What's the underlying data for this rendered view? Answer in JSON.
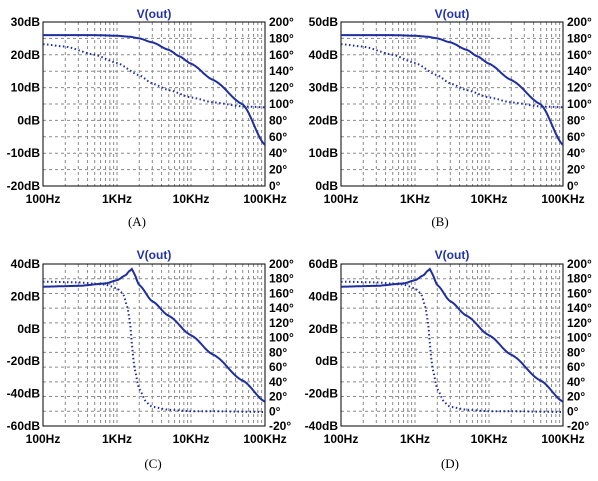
{
  "colors": {
    "trace": "#1f2fa0",
    "title": "#2233aa",
    "grid": "#8a8a8a",
    "axis": "#000000",
    "background": "#ffffff"
  },
  "chart_data": [
    {
      "label": "(A)",
      "type": "line",
      "title": "V(out)",
      "x_scale": "log",
      "xlim": [
        100,
        100000
      ],
      "x_ticks": [
        "100Hz",
        "1KHz",
        "10KHz",
        "100KHz"
      ],
      "y_left": {
        "ticks": [
          "30dB",
          "20dB",
          "10dB",
          "0dB",
          "-10dB",
          "-20dB"
        ],
        "lim": [
          -20,
          30
        ]
      },
      "y_right": {
        "ticks": [
          "200°",
          "180°",
          "160°",
          "140°",
          "120°",
          "100°",
          "80°",
          "60°",
          "40°",
          "20°",
          "0°"
        ],
        "lim": [
          0,
          200
        ]
      },
      "grid": true,
      "series": [
        {
          "style": "solid",
          "axis": "left",
          "x": [
            100,
            200,
            500,
            1000,
            1500,
            2000,
            3000,
            5000,
            7000,
            10000,
            20000,
            50000,
            100000
          ],
          "y": [
            26,
            26,
            26,
            25.8,
            25.5,
            25,
            23.8,
            21.5,
            19.5,
            17.3,
            12.3,
            4.9,
            -7.5
          ]
        },
        {
          "style": "dotted",
          "axis": "right",
          "x": [
            100,
            200,
            500,
            1000,
            2000,
            3000,
            5000,
            10000,
            20000,
            50000,
            100000
          ],
          "y": [
            173,
            170,
            160,
            150,
            135,
            125,
            117,
            108,
            102,
            97,
            96
          ]
        }
      ]
    },
    {
      "label": "(B)",
      "type": "line",
      "title": "V(out)",
      "x_scale": "log",
      "xlim": [
        100,
        100000
      ],
      "x_ticks": [
        "100Hz",
        "1KHz",
        "10KHz",
        "100KHz"
      ],
      "y_left": {
        "ticks": [
          "50dB",
          "40dB",
          "30dB",
          "20dB",
          "10dB",
          "0dB"
        ],
        "lim": [
          0,
          50
        ]
      },
      "y_right": {
        "ticks": [
          "200°",
          "180°",
          "160°",
          "140°",
          "120°",
          "100°",
          "80°",
          "60°",
          "40°",
          "20°",
          "0°"
        ],
        "lim": [
          0,
          200
        ]
      },
      "grid": true,
      "series": [
        {
          "style": "solid",
          "axis": "left",
          "x": [
            100,
            200,
            500,
            1000,
            1500,
            2000,
            3000,
            5000,
            7000,
            10000,
            20000,
            50000,
            100000
          ],
          "y": [
            46,
            46,
            46,
            45.8,
            45.5,
            45,
            43.8,
            41.5,
            39.5,
            37.3,
            32.3,
            24.9,
            12.5
          ]
        },
        {
          "style": "dotted",
          "axis": "right",
          "x": [
            100,
            200,
            500,
            1000,
            2000,
            3000,
            5000,
            10000,
            20000,
            50000,
            100000
          ],
          "y": [
            173,
            170,
            160,
            150,
            135,
            125,
            117,
            108,
            102,
            97,
            96
          ]
        }
      ]
    },
    {
      "label": "(C)",
      "type": "line",
      "title": "V(out)",
      "x_scale": "log",
      "xlim": [
        100,
        100000
      ],
      "x_ticks": [
        "100Hz",
        "1KHz",
        "10KHz",
        "100KHz"
      ],
      "y_left": {
        "ticks": [
          "40dB",
          "20dB",
          "0dB",
          "-20dB",
          "-40dB",
          "-60dB"
        ],
        "lim": [
          -60,
          40
        ]
      },
      "y_right": {
        "ticks": [
          "200°",
          "180°",
          "160°",
          "140°",
          "120°",
          "100°",
          "80°",
          "60°",
          "40°",
          "20°",
          "0°",
          "-20°"
        ],
        "lim": [
          -20,
          200
        ]
      },
      "grid": true,
      "series": [
        {
          "style": "solid",
          "axis": "left",
          "x": [
            100,
            300,
            700,
            1000,
            1300,
            1500,
            1600,
            1700,
            2000,
            3000,
            5000,
            10000,
            20000,
            50000,
            100000
          ],
          "y": [
            26,
            26.5,
            28,
            30,
            33,
            36,
            37,
            34,
            27,
            17,
            8,
            -4,
            -16,
            -32,
            -45
          ]
        },
        {
          "style": "dotted",
          "axis": "right",
          "x": [
            100,
            300,
            700,
            1000,
            1200,
            1400,
            1500,
            1600,
            1700,
            2000,
            2500,
            3000,
            5000,
            10000,
            20000,
            100000
          ],
          "y": [
            176,
            175,
            172,
            167,
            160,
            140,
            120,
            90,
            60,
            30,
            12,
            6,
            2,
            0,
            0,
            -1
          ]
        }
      ]
    },
    {
      "label": "(D)",
      "type": "line",
      "title": "V(out)",
      "x_scale": "log",
      "xlim": [
        100,
        100000
      ],
      "x_ticks": [
        "100Hz",
        "1KHz",
        "10KHz",
        "100KHz"
      ],
      "y_left": {
        "ticks": [
          "60dB",
          "40dB",
          "20dB",
          "0dB",
          "-20dB",
          "-40dB"
        ],
        "lim": [
          -40,
          60
        ]
      },
      "y_right": {
        "ticks": [
          "200°",
          "180°",
          "160°",
          "140°",
          "120°",
          "100°",
          "80°",
          "60°",
          "40°",
          "20°",
          "0°",
          "-20°"
        ],
        "lim": [
          -20,
          200
        ]
      },
      "grid": true,
      "series": [
        {
          "style": "solid",
          "axis": "left",
          "x": [
            100,
            300,
            700,
            1000,
            1300,
            1500,
            1600,
            1700,
            2000,
            3000,
            5000,
            10000,
            20000,
            50000,
            100000
          ],
          "y": [
            46,
            46.5,
            48,
            50,
            53,
            56,
            57,
            54,
            47,
            37,
            28,
            16,
            4,
            -12,
            -25
          ]
        },
        {
          "style": "dotted",
          "axis": "right",
          "x": [
            100,
            300,
            700,
            1000,
            1200,
            1400,
            1500,
            1600,
            1700,
            2000,
            2500,
            3000,
            5000,
            10000,
            20000,
            100000
          ],
          "y": [
            176,
            175,
            172,
            167,
            160,
            140,
            120,
            90,
            60,
            30,
            12,
            6,
            2,
            0,
            0,
            -1
          ]
        }
      ]
    }
  ]
}
